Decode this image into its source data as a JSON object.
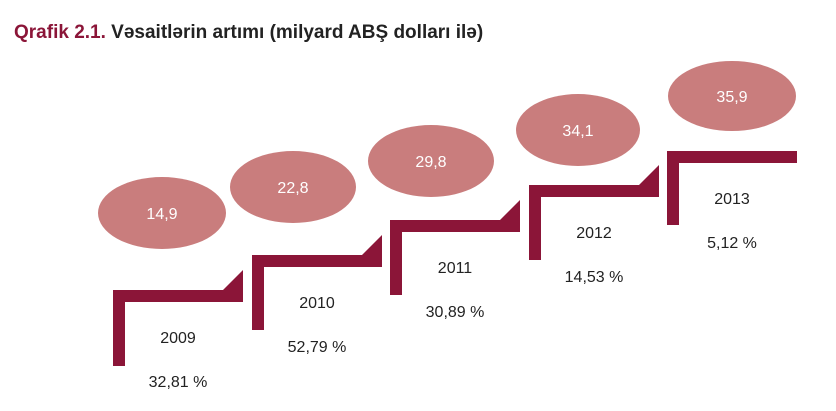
{
  "title": {
    "prefix": "Qrafik 2.1.",
    "text": "Vəsaitlərin artımı (milyard ABŞ dolları ilə)"
  },
  "colors": {
    "step": "#8b1538",
    "bubble": "#c97d7d",
    "text": "#222222",
    "accent": "#8b1538"
  },
  "chart_data": {
    "type": "bar",
    "title": "Vəsaitlərin artımı (milyard ABŞ dolları ilə)",
    "categories": [
      "2009",
      "2010",
      "2011",
      "2012",
      "2013"
    ],
    "values": [
      14.9,
      22.8,
      29.8,
      34.1,
      35.9
    ],
    "value_labels": [
      "14,9",
      "22,8",
      "29,8",
      "34,1",
      "35,9"
    ],
    "growth_labels": [
      "32,81 %",
      "52,79 %",
      "30,89 %",
      "14,53 %",
      "5,12 %"
    ],
    "growth": [
      32.81,
      52.79,
      30.89,
      14.53,
      5.12
    ]
  }
}
